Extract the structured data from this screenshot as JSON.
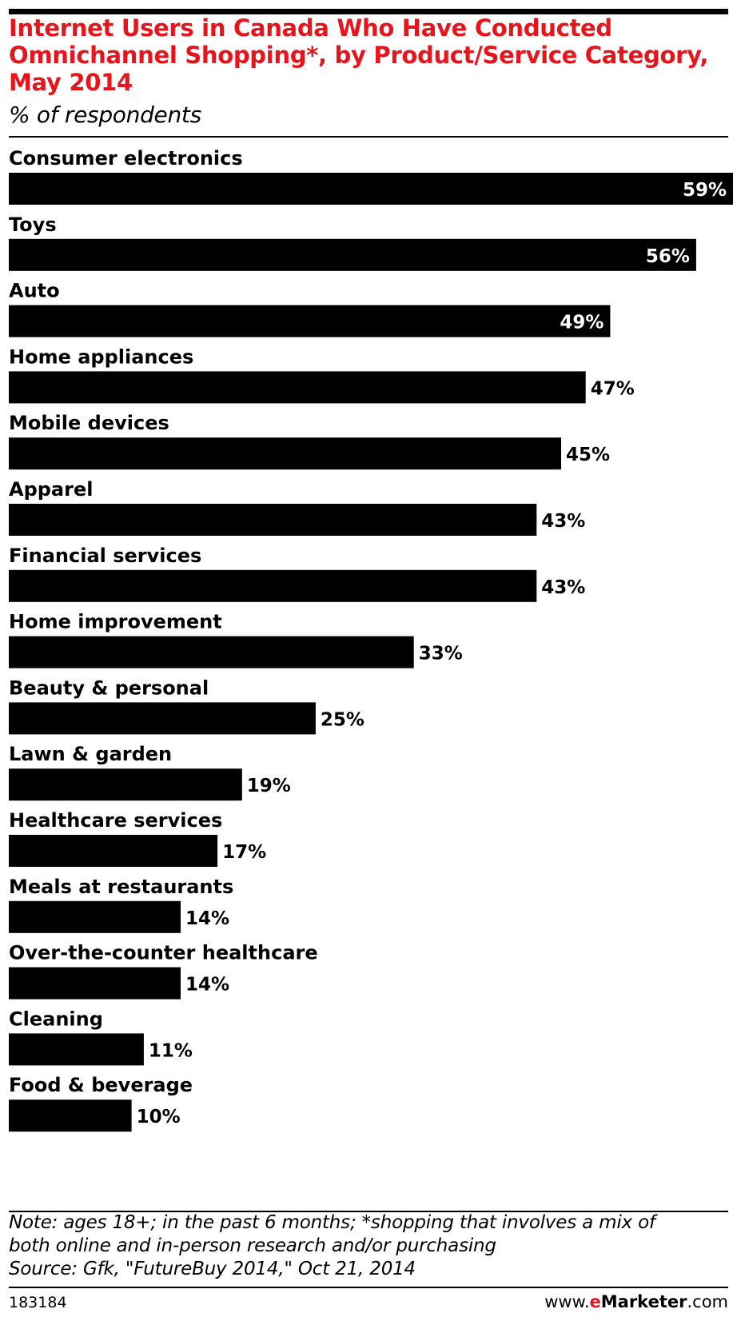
{
  "chart_data": {
    "type": "bar",
    "orientation": "horizontal",
    "title": "Internet Users in Canada Who Have Conducted Omnichannel Shopping*, by Product/Service Category, May 2014",
    "title_lines": [
      "Internet Users in Canada Who Have Conducted",
      "Omnichannel Shopping*, by Product/Service Category,",
      "May 2014"
    ],
    "subtitle": "% of respondents",
    "categories": [
      "Consumer electronics",
      "Toys",
      "Auto",
      "Home appliances",
      "Mobile devices",
      "Apparel",
      "Financial services",
      "Home improvement",
      "Beauty & personal",
      "Lawn & garden",
      "Healthcare services",
      "Meals at restaurants",
      "Over-the-counter healthcare",
      "Cleaning",
      "Food & beverage"
    ],
    "values": [
      59,
      56,
      49,
      47,
      45,
      43,
      43,
      33,
      25,
      19,
      17,
      14,
      14,
      11,
      10
    ],
    "value_labels": [
      "59%",
      "56%",
      "49%",
      "47%",
      "45%",
      "43%",
      "43%",
      "33%",
      "25%",
      "19%",
      "17%",
      "14%",
      "14%",
      "11%",
      "10%"
    ],
    "unit": "%",
    "xlim": [
      0,
      59
    ],
    "grid": false,
    "legend": "none",
    "bar_color": "#000000",
    "title_color": "#e8141b"
  },
  "footer": {
    "note_lines": [
      "Note: ages 18+; in the past 6 months; *shopping that involves a mix of",
      "both online and in-person research and/or purchasing",
      "Source: Gfk, \"FutureBuy 2014,\" Oct 21, 2014"
    ],
    "chart_id": "183184",
    "brand_prefix": "www.",
    "brand_e": "e",
    "brand_name": "Marketer",
    "brand_suffix": ".com"
  }
}
